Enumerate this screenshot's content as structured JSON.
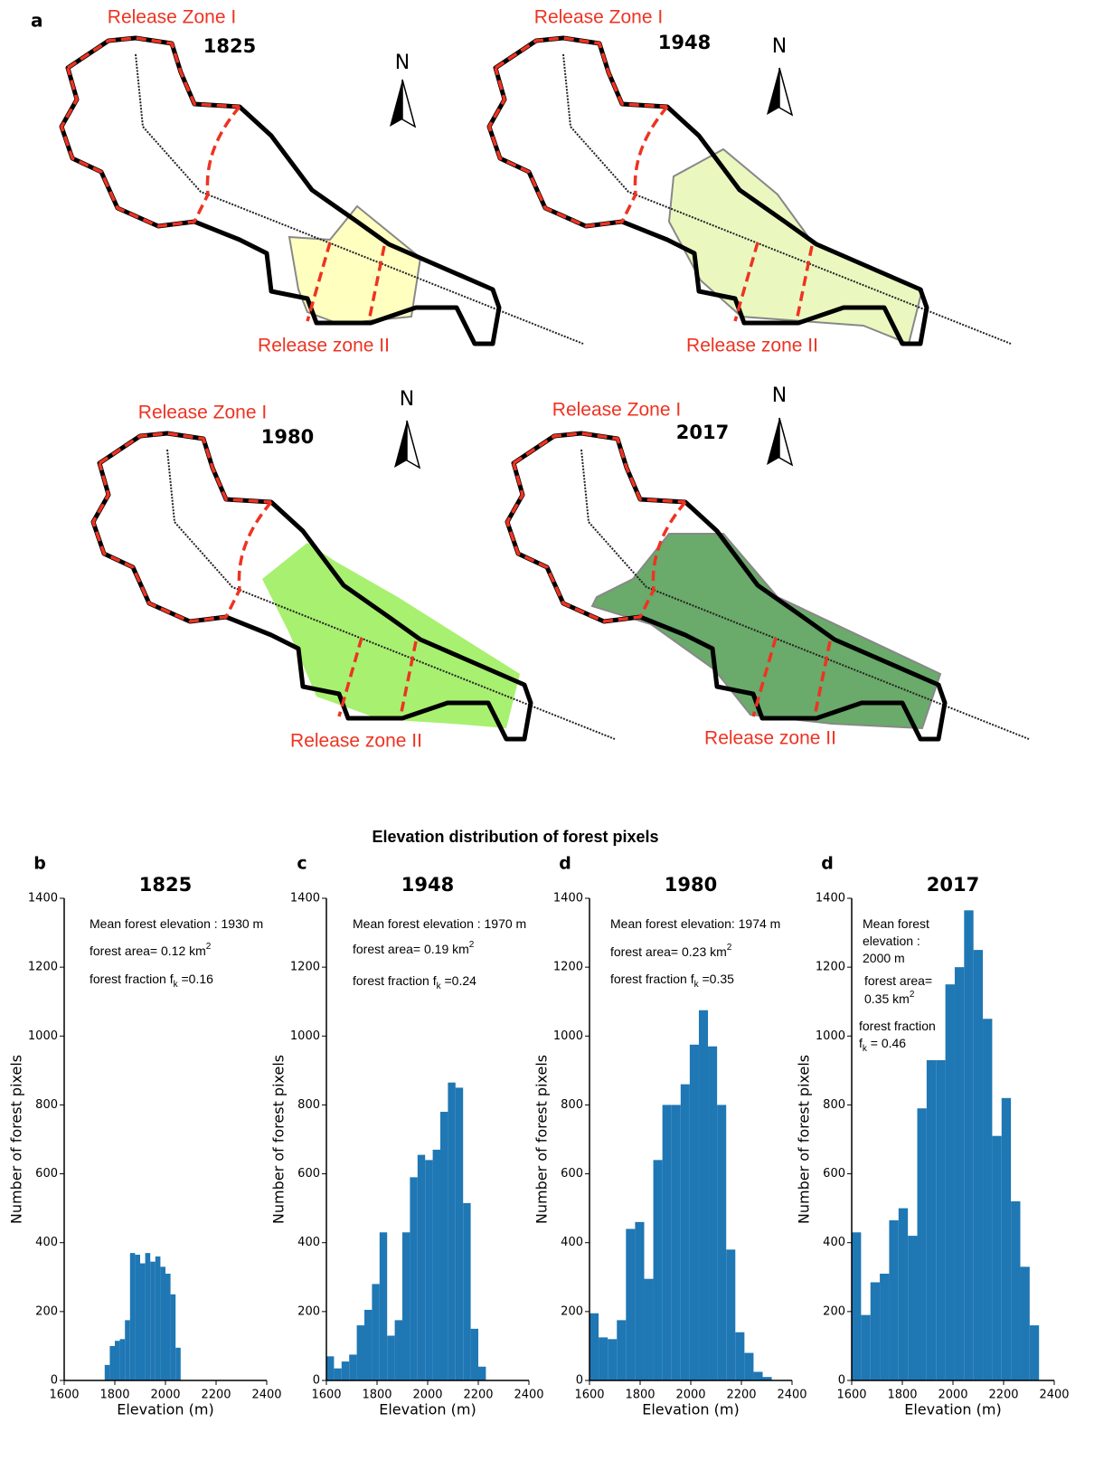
{
  "panel_a": {
    "label": "a",
    "maps": [
      {
        "year": "1825",
        "zone_1": "Release Zone I",
        "zone_2": "Release zone II",
        "north": "N"
      },
      {
        "year": "1948",
        "zone_1": "Release Zone I",
        "zone_2": "Release zone II",
        "north": "N"
      },
      {
        "year": "1980",
        "zone_1": "Release Zone I",
        "zone_2": "Release zone II",
        "north": "N"
      },
      {
        "year": "2017",
        "zone_1": "Release Zone I",
        "zone_2": "Release zone II",
        "north": "N"
      }
    ]
  },
  "figure_title": "Elevation distribution of forest pixels",
  "chart_data": [
    {
      "type": "histogram",
      "panel": "b",
      "title": "1825",
      "color": "#1f77b4",
      "bins": [
        1760,
        1780,
        1800,
        1820,
        1840,
        1860,
        1880,
        1900,
        1920,
        1940,
        1960,
        1980,
        2000,
        2020,
        2040,
        2060
      ],
      "values": [
        45,
        100,
        115,
        120,
        175,
        370,
        365,
        340,
        370,
        345,
        360,
        330,
        310,
        250,
        95
      ],
      "xlabel": "Elevation (m)",
      "ylabel": "Number of forest pixels",
      "xlim": [
        1600,
        2400
      ],
      "ylim": [
        0,
        1400
      ],
      "xticks": [
        1600,
        1800,
        2000,
        2200,
        2400
      ],
      "yticks": [
        0,
        200,
        400,
        600,
        800,
        1000,
        1200,
        1400
      ],
      "annotations": [
        [
          {
            "text": "Mean forest elevation : 1930 m"
          }
        ],
        [
          {
            "text": "forest area= 0.12  km"
          },
          {
            "text": "2",
            "style": "sup"
          }
        ],
        [
          {
            "text": "forest fraction f"
          },
          {
            "text": "k",
            "style": "sub"
          },
          {
            "text": " =0.16"
          }
        ]
      ]
    },
    {
      "type": "histogram",
      "panel": "c",
      "title": "1948",
      "color": "#1f77b4",
      "bins": [
        1600,
        1630,
        1660,
        1690,
        1720,
        1750,
        1780,
        1810,
        1840,
        1870,
        1900,
        1930,
        1960,
        1990,
        2020,
        2050,
        2080,
        2110,
        2140,
        2170,
        2200,
        2230
      ],
      "values": [
        70,
        35,
        55,
        75,
        160,
        205,
        280,
        430,
        130,
        175,
        430,
        590,
        655,
        640,
        670,
        780,
        865,
        850,
        515,
        150,
        40
      ],
      "xlabel": "Elevation (m)",
      "ylabel": "Number of forest pixels",
      "xlim": [
        1600,
        2400
      ],
      "ylim": [
        0,
        1400
      ],
      "xticks": [
        1600,
        1800,
        2000,
        2200,
        2400
      ],
      "yticks": [
        0,
        200,
        400,
        600,
        800,
        1000,
        1200,
        1400
      ],
      "annotations": [
        [
          {
            "text": "Mean forest elevation : 1970 m"
          }
        ],
        [
          {
            "text": "forest area= 0.19 km"
          },
          {
            "text": "2",
            "style": "sup"
          }
        ],
        [
          {
            "text": "forest fraction f"
          },
          {
            "text": "k",
            "style": "sub"
          },
          {
            "text": " =0.24"
          }
        ]
      ]
    },
    {
      "type": "histogram",
      "panel": "d",
      "title": "1980",
      "color": "#1f77b4",
      "bins": [
        1600,
        1636,
        1672,
        1708,
        1744,
        1780,
        1816,
        1852,
        1888,
        1924,
        1960,
        1996,
        2032,
        2068,
        2104,
        2140,
        2176,
        2212,
        2248,
        2284,
        2320
      ],
      "values": [
        195,
        125,
        120,
        175,
        440,
        460,
        295,
        640,
        800,
        800,
        860,
        975,
        1075,
        970,
        800,
        380,
        140,
        80,
        25,
        10
      ],
      "xlabel": "Elevation (m)",
      "ylabel": "Number of forest pixels",
      "xlim": [
        1600,
        2400
      ],
      "ylim": [
        0,
        1400
      ],
      "xticks": [
        1600,
        1800,
        2000,
        2200,
        2400
      ],
      "yticks": [
        0,
        200,
        400,
        600,
        800,
        1000,
        1200,
        1400
      ],
      "annotations": [
        [
          {
            "text": "Mean forest elevation: 1974 m"
          }
        ],
        [
          {
            "text": "forest area= 0.23 km"
          },
          {
            "text": "2",
            "style": "sup"
          }
        ],
        [
          {
            "text": "forest fraction f"
          },
          {
            "text": "k",
            "style": "sub"
          },
          {
            "text": " =0.35"
          }
        ]
      ]
    },
    {
      "type": "histogram",
      "panel": "d",
      "title": "2017",
      "color": "#1f77b4",
      "bins": [
        1600,
        1637,
        1674,
        1711,
        1748,
        1785,
        1822,
        1859,
        1896,
        1933,
        1970,
        2007,
        2044,
        2081,
        2118,
        2155,
        2192,
        2229,
        2266,
        2303,
        2340
      ],
      "values": [
        430,
        190,
        285,
        310,
        465,
        500,
        420,
        790,
        930,
        930,
        1150,
        1200,
        1365,
        1250,
        1050,
        710,
        820,
        520,
        330,
        160
      ],
      "xlabel": "Elevation (m)",
      "ylabel": "Number of forest pixels",
      "xlim": [
        1600,
        2400
      ],
      "ylim": [
        0,
        1400
      ],
      "xticks": [
        1600,
        1800,
        2000,
        2200,
        2400
      ],
      "yticks": [
        0,
        200,
        400,
        600,
        800,
        1000,
        1200,
        1400
      ],
      "annotations": [
        [
          {
            "text": "Mean forest"
          }
        ],
        [
          {
            "text": "elevation :"
          }
        ],
        [
          {
            "text": "2000 m"
          }
        ],
        [
          {
            "text": "forest area="
          }
        ],
        [
          {
            "text": "0.35 km"
          },
          {
            "text": "2",
            "style": "sup"
          }
        ],
        [
          {
            "text": "forest fraction"
          }
        ],
        [
          {
            "text": "f"
          },
          {
            "text": "k",
            "style": "sub"
          },
          {
            "text": " = 0.46"
          }
        ]
      ]
    }
  ]
}
